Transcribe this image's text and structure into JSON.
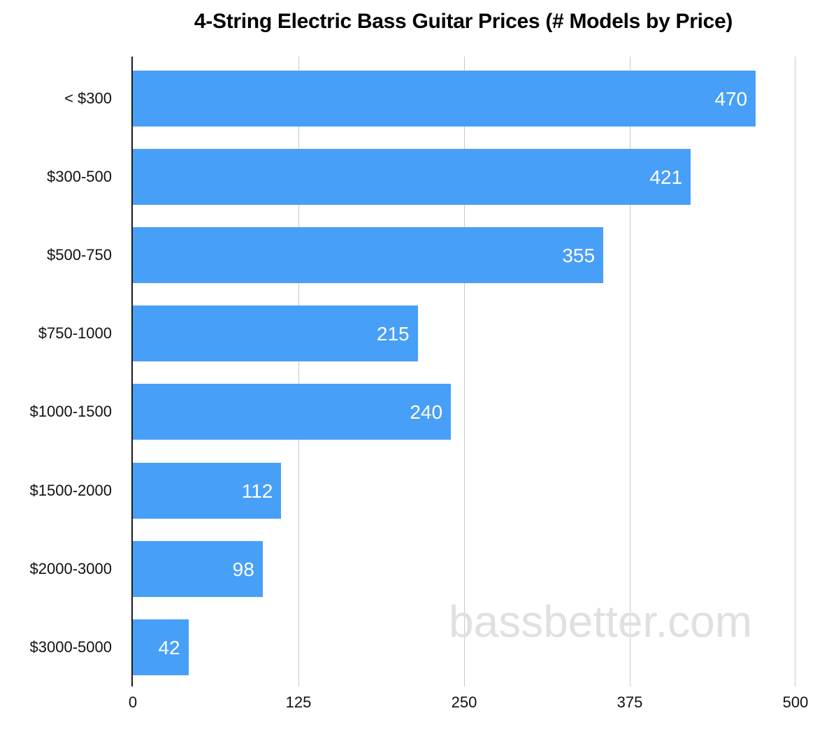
{
  "chart_data": {
    "type": "bar",
    "orientation": "horizontal",
    "title": "4-String Electric Bass Guitar Prices (# Models by Price)",
    "xlabel": "",
    "ylabel": "",
    "categories": [
      "< $300",
      "$300-500",
      "$500-750",
      "$750-1000",
      "$1000-1500",
      "$1500-2000",
      "$2000-3000",
      "$3000-5000"
    ],
    "values": [
      470,
      421,
      355,
      215,
      240,
      112,
      98,
      42
    ],
    "xlim": [
      0,
      500
    ],
    "xticks": [
      "0",
      "125",
      "250",
      "375",
      "500"
    ],
    "grid": "vertical",
    "legend": "none",
    "bar_color": "#489ff7",
    "data_labels": [
      "470",
      "421",
      "355",
      "215",
      "240",
      "112",
      "98",
      "42"
    ]
  },
  "watermark": "bassbetter.com"
}
